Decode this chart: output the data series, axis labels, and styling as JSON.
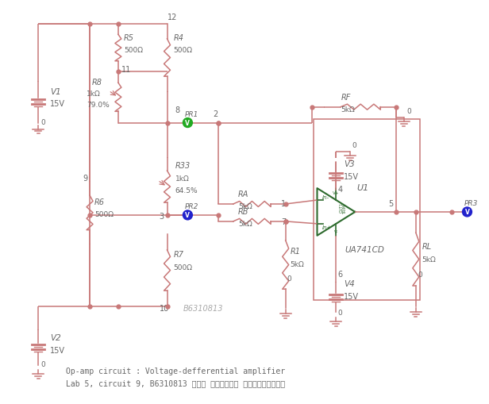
{
  "wire_color": "#c87070",
  "comp_color": "#c8707070",
  "opamp_color": "#2d6a2d",
  "text_color": "#555555",
  "node_color_green": "#22aa22",
  "node_color_blue": "#2222cc",
  "title_line1": "Op-amp circuit : Voltage-defferential amplifier",
  "title_line2": "Lab 5, circuit 9, B6310813 นาย วรพงศ์ จันทร์เปา",
  "watermark": "B6310813"
}
